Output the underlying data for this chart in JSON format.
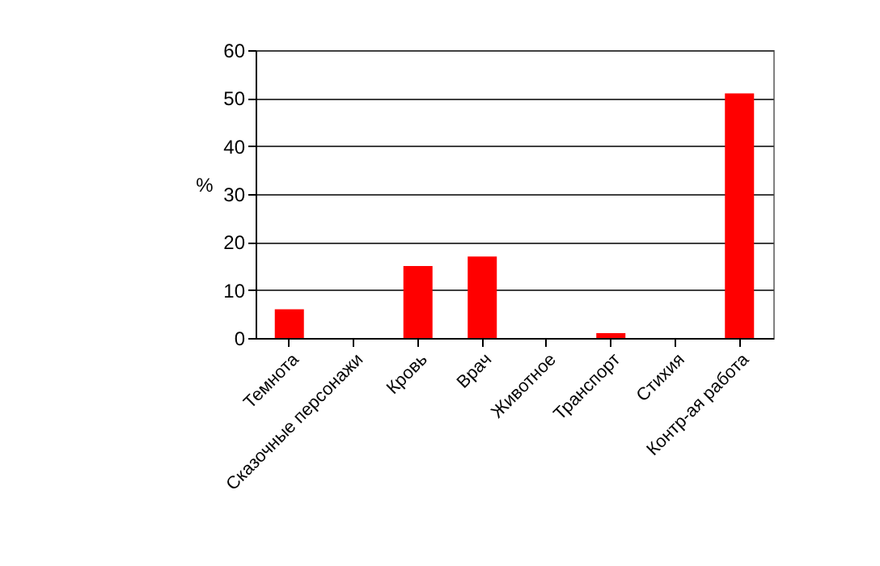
{
  "chart_data": {
    "type": "bar",
    "ylabel": "%",
    "categories": [
      "Темнота",
      "Сказочные персонажи",
      "Кровь",
      "Врач",
      "Животное",
      "Транспорт",
      "Стихия",
      "Контр-ая работа"
    ],
    "values": [
      6,
      0,
      15,
      17,
      0,
      1,
      0,
      51
    ],
    "color": "#ff0000",
    "ylim": [
      0,
      60
    ],
    "yticks": [
      0,
      10,
      20,
      30,
      40,
      50,
      60
    ],
    "grid": "y"
  }
}
